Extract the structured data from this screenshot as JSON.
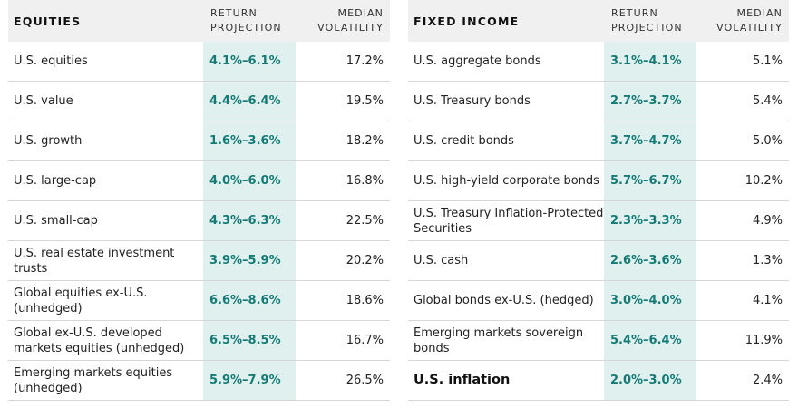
{
  "colors": {
    "accent_text": "#137a75",
    "accent_fill": "#dff0ee",
    "header_fill": "#f0f0f0"
  },
  "equities": {
    "title": "EQUITIES",
    "col_return_1": "RETURN",
    "col_return_2": "PROJECTION",
    "col_vol_1": "MEDIAN",
    "col_vol_2": "VOLATILITY",
    "rows": [
      {
        "name": "U.S. equities",
        "ret": "4.1%–6.1%",
        "vol": "17.2%"
      },
      {
        "name": "U.S. value",
        "ret": "4.4%–6.4%",
        "vol": "19.5%"
      },
      {
        "name": "U.S. growth",
        "ret": "1.6%–3.6%",
        "vol": "18.2%"
      },
      {
        "name": "U.S. large-cap",
        "ret": "4.0%–6.0%",
        "vol": "16.8%"
      },
      {
        "name": "U.S. small-cap",
        "ret": "4.3%–6.3%",
        "vol": "22.5%"
      },
      {
        "name": "U.S. real estate investment trusts",
        "ret": "3.9%–5.9%",
        "vol": "20.2%"
      },
      {
        "name": "Global equities ex-U.S. (unhedged)",
        "ret": "6.6%–8.6%",
        "vol": "18.6%"
      },
      {
        "name": "Global ex-U.S. developed markets equities (unhedged)",
        "ret": "6.5%–8.5%",
        "vol": "16.7%"
      },
      {
        "name": "Emerging markets equities (unhedged)",
        "ret": "5.9%–7.9%",
        "vol": "26.5%"
      }
    ]
  },
  "fixed_income": {
    "title": "FIXED INCOME",
    "col_return_1": "RETURN",
    "col_return_2": "PROJECTION",
    "col_vol_1": "MEDIAN",
    "col_vol_2": "VOLATILITY",
    "rows": [
      {
        "name": "U.S. aggregate bonds",
        "ret": "3.1%–4.1%",
        "vol": "5.1%"
      },
      {
        "name": "U.S. Treasury bonds",
        "ret": "2.7%–3.7%",
        "vol": "5.4%"
      },
      {
        "name": "U.S. credit bonds",
        "ret": "3.7%–4.7%",
        "vol": "5.0%"
      },
      {
        "name": "U.S. high-yield corporate bonds",
        "ret": "5.7%–6.7%",
        "vol": "10.2%"
      },
      {
        "name": "U.S. Treasury Inflation-Protected Securities",
        "ret": "2.3%–3.3%",
        "vol": "4.9%"
      },
      {
        "name": "U.S. cash",
        "ret": "2.6%–3.6%",
        "vol": "1.3%"
      },
      {
        "name": "Global bonds ex-U.S. (hedged)",
        "ret": "3.0%–4.0%",
        "vol": "4.1%"
      },
      {
        "name": "Emerging markets sovereign bonds",
        "ret": "5.4%–6.4%",
        "vol": "11.9%"
      },
      {
        "name": "U.S. inflation",
        "ret": "2.0%–3.0%",
        "vol": "2.4%"
      }
    ]
  }
}
